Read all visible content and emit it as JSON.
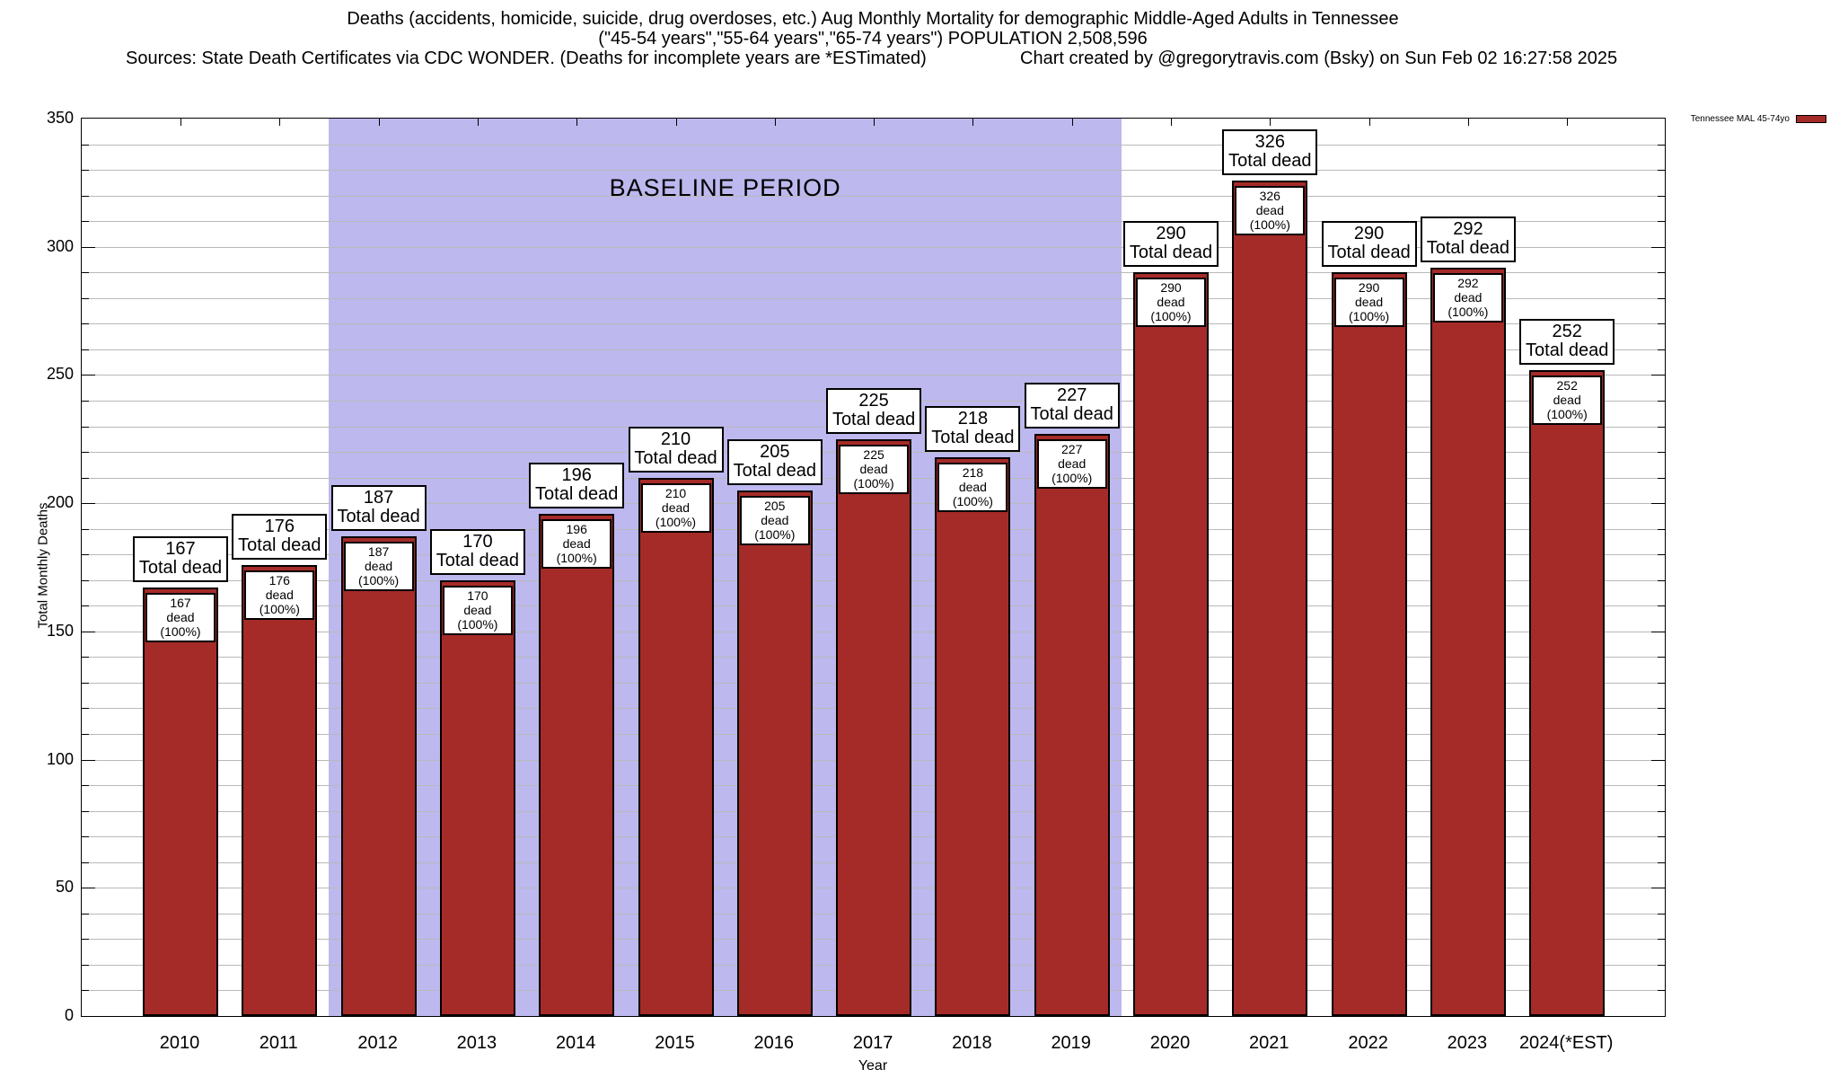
{
  "header": {
    "title_line1": "Deaths (accidents, homicide, suicide, drug overdoses, etc.) Aug Monthly Mortality for demographic Middle-Aged Adults in Tennessee",
    "title_line2": "(\"45-54 years\",\"55-64 years\",\"65-74 years\") POPULATION 2,508,596",
    "sources_line": "Sources: State Death Certificates via CDC WONDER. (Deaths for incomplete years are *ESTimated)",
    "credit_line": "Chart created by @gregorytravis.com (Bsky) on Sun Feb 02 16:27:58 2025"
  },
  "legend": {
    "label": "Tennessee MAL 45-74yo",
    "swatch_color": "#a52b28"
  },
  "chart_data": {
    "type": "bar",
    "title": "Deaths (accidents, homicide, suicide, drug overdoses, etc.) Aug Monthly Mortality for demographic Middle-Aged Adults in Tennessee",
    "xlabel": "Year",
    "ylabel": "Total Monthly Deaths",
    "ylim": [
      0,
      350
    ],
    "ytick_major_step": 50,
    "ytick_minor_step": 10,
    "grid": "horizontal minor gridlines on, vertical off",
    "legend_position": "top-right outside",
    "series_name": "Tennessee MAL 45-74yo",
    "categories": [
      "2010",
      "2011",
      "2012",
      "2013",
      "2014",
      "2015",
      "2016",
      "2017",
      "2018",
      "2019",
      "2020",
      "2021",
      "2022",
      "2023",
      "2024(*EST)"
    ],
    "values": [
      167,
      176,
      187,
      170,
      196,
      210,
      205,
      225,
      218,
      227,
      290,
      326,
      290,
      292,
      252
    ],
    "bar_color": "#a52b28",
    "bar_top_label_suffix": "Total dead",
    "bar_inner_label_suffix": "dead (100%)",
    "annotations": {
      "baseline_label": "BASELINE PERIOD",
      "baseline_start_category": "2012",
      "baseline_end_category": "2019",
      "baseline_color": "#bdb8ee"
    }
  }
}
